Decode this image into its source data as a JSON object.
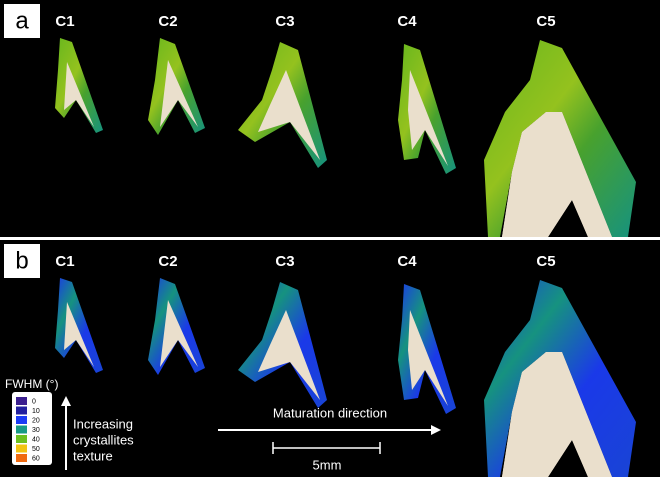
{
  "panels": [
    {
      "label": "a",
      "specimens": [
        "C1",
        "C2",
        "C3",
        "C4",
        "C5"
      ]
    },
    {
      "label": "b",
      "specimens": [
        "C1",
        "C2",
        "C3",
        "C4",
        "C5"
      ]
    }
  ],
  "legend": {
    "title": "FWHM (°)",
    "entries": [
      {
        "value": 0,
        "color": "#3b1f8f"
      },
      {
        "value": 10,
        "color": "#23209f"
      },
      {
        "value": 20,
        "color": "#1c3cf5"
      },
      {
        "value": 30,
        "color": "#179a86"
      },
      {
        "value": 40,
        "color": "#6cc020"
      },
      {
        "value": 50,
        "color": "#f2c412"
      },
      {
        "value": 60,
        "color": "#f06a10"
      }
    ]
  },
  "texture_arrow": [
    "Increasing",
    "crystallites",
    "texture"
  ],
  "maturation_arrow": "Maturation direction",
  "scale_bar": "5mm"
}
